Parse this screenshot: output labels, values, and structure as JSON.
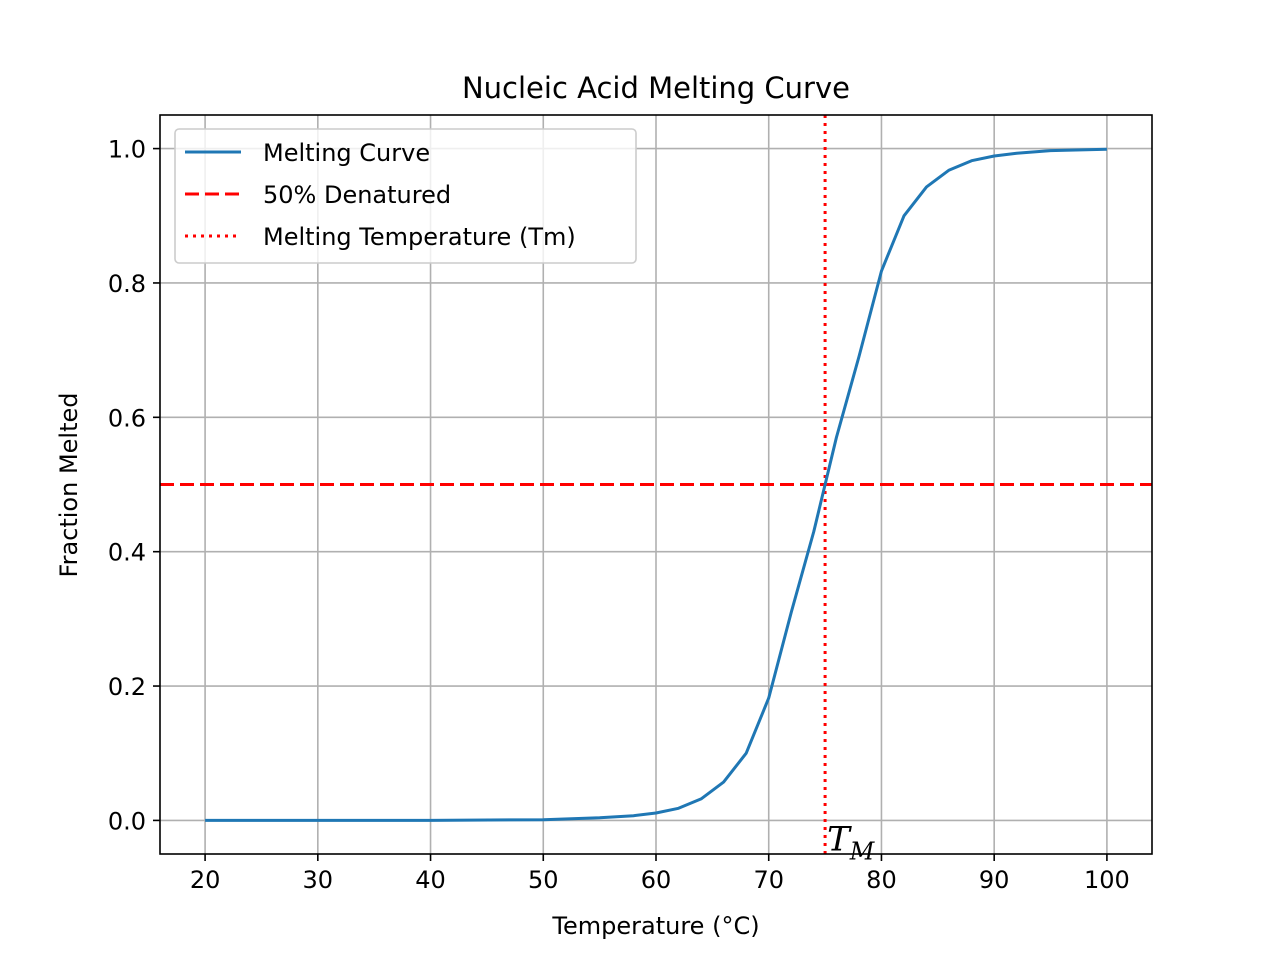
{
  "chart_data": {
    "type": "line",
    "title": "Nucleic Acid Melting Curve",
    "xlabel": "Temperature (°C)",
    "ylabel": "Fraction Melted",
    "xlim": [
      16,
      104
    ],
    "ylim": [
      -0.05,
      1.05
    ],
    "xticks": [
      20,
      30,
      40,
      50,
      60,
      70,
      80,
      90,
      100
    ],
    "yticks": [
      0.0,
      0.2,
      0.4,
      0.6,
      0.8,
      1.0
    ],
    "xtick_labels": [
      "20",
      "30",
      "40",
      "50",
      "60",
      "70",
      "80",
      "90",
      "100"
    ],
    "ytick_labels": [
      "0.0",
      "0.2",
      "0.4",
      "0.6",
      "0.8",
      "1.0"
    ],
    "grid": true,
    "legend_position": "top-left",
    "series": [
      {
        "name": "Melting Curve",
        "style": "solid",
        "color": "#1f77b4",
        "x": [
          20,
          30,
          40,
          50,
          55,
          58,
          60,
          62,
          64,
          66,
          68,
          70,
          72,
          74,
          75,
          76,
          78,
          80,
          82,
          84,
          86,
          88,
          90,
          92,
          95,
          100
        ],
        "y": [
          0.0,
          0.0,
          0.0,
          0.001,
          0.004,
          0.007,
          0.011,
          0.018,
          0.032,
          0.057,
          0.1,
          0.182,
          0.31,
          0.43,
          0.5,
          0.57,
          0.69,
          0.818,
          0.9,
          0.943,
          0.968,
          0.982,
          0.989,
          0.993,
          0.997,
          0.999
        ]
      },
      {
        "name": "50% Denatured",
        "style": "dashed",
        "color": "#ff0000",
        "orientation": "horizontal",
        "value": 0.5
      },
      {
        "name": "Melting Temperature (Tm)",
        "style": "dotted",
        "color": "#ff0000",
        "orientation": "vertical",
        "value": 75
      }
    ],
    "annotation": {
      "base": "T",
      "sub": "M",
      "x": 75,
      "y": -0.03
    }
  }
}
